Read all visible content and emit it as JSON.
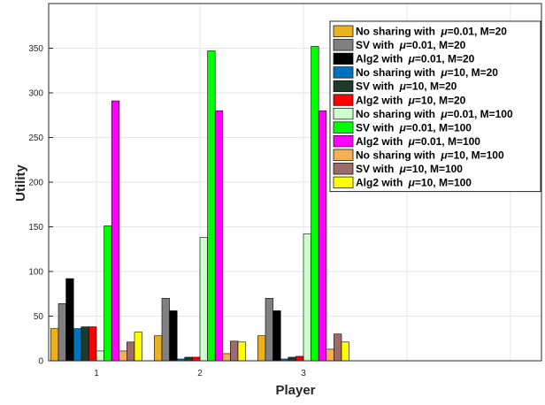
{
  "chart_data": {
    "type": "bar",
    "xlabel": "Player",
    "ylabel": "Utility",
    "categories": [
      "1",
      "2",
      "3"
    ],
    "ylim": [
      0,
      400
    ],
    "yticks": [
      0,
      50,
      100,
      150,
      200,
      250,
      300,
      350
    ],
    "grid": true,
    "legend_position": "top-right",
    "series": [
      {
        "name_prefix": "No sharing with ",
        "name_params": "=0.01, M=20",
        "color": "#EDB120",
        "values": [
          36,
          28,
          28
        ]
      },
      {
        "name_prefix": "SV with ",
        "name_params": "=0.01, M=20",
        "color": "#808080",
        "values": [
          64,
          70,
          70
        ]
      },
      {
        "name_prefix": "Alg2 with ",
        "name_params": "=0.01, M=20",
        "color": "#000000",
        "values": [
          92,
          56,
          56
        ]
      },
      {
        "name_prefix": "No sharing with ",
        "name_params": "=10, M=20",
        "color": "#0072BD",
        "values": [
          36,
          2,
          2
        ]
      },
      {
        "name_prefix": "SV with ",
        "name_params": "=10, M=20",
        "color": "#1E3A2A",
        "values": [
          38,
          4,
          4
        ]
      },
      {
        "name_prefix": "Alg2 with ",
        "name_params": "=10, M=20",
        "color": "#FF0000",
        "values": [
          38,
          4,
          5
        ]
      },
      {
        "name_prefix": "No sharing with ",
        "name_params": "=0.01, M=100",
        "color": "#CCFFCC",
        "values": [
          11,
          138,
          142
        ]
      },
      {
        "name_prefix": "SV with ",
        "name_params": "=0.01, M=100",
        "color": "#00FF00",
        "values": [
          151,
          347,
          352
        ]
      },
      {
        "name_prefix": "Alg2 with ",
        "name_params": "=0.01, M=100",
        "color": "#FF00FF",
        "values": [
          291,
          280,
          280
        ]
      },
      {
        "name_prefix": "No sharing with ",
        "name_params": "=10, M=100",
        "color": "#F5B055",
        "values": [
          11,
          8,
          13
        ]
      },
      {
        "name_prefix": "SV with ",
        "name_params": "=10, M=100",
        "color": "#9E6A6A",
        "values": [
          21,
          22,
          30
        ]
      },
      {
        "name_prefix": "Alg2 with ",
        "name_params": "=10, M=100",
        "color": "#FFFF00",
        "values": [
          32,
          21,
          21
        ]
      }
    ],
    "mu_symbol": "μ"
  }
}
